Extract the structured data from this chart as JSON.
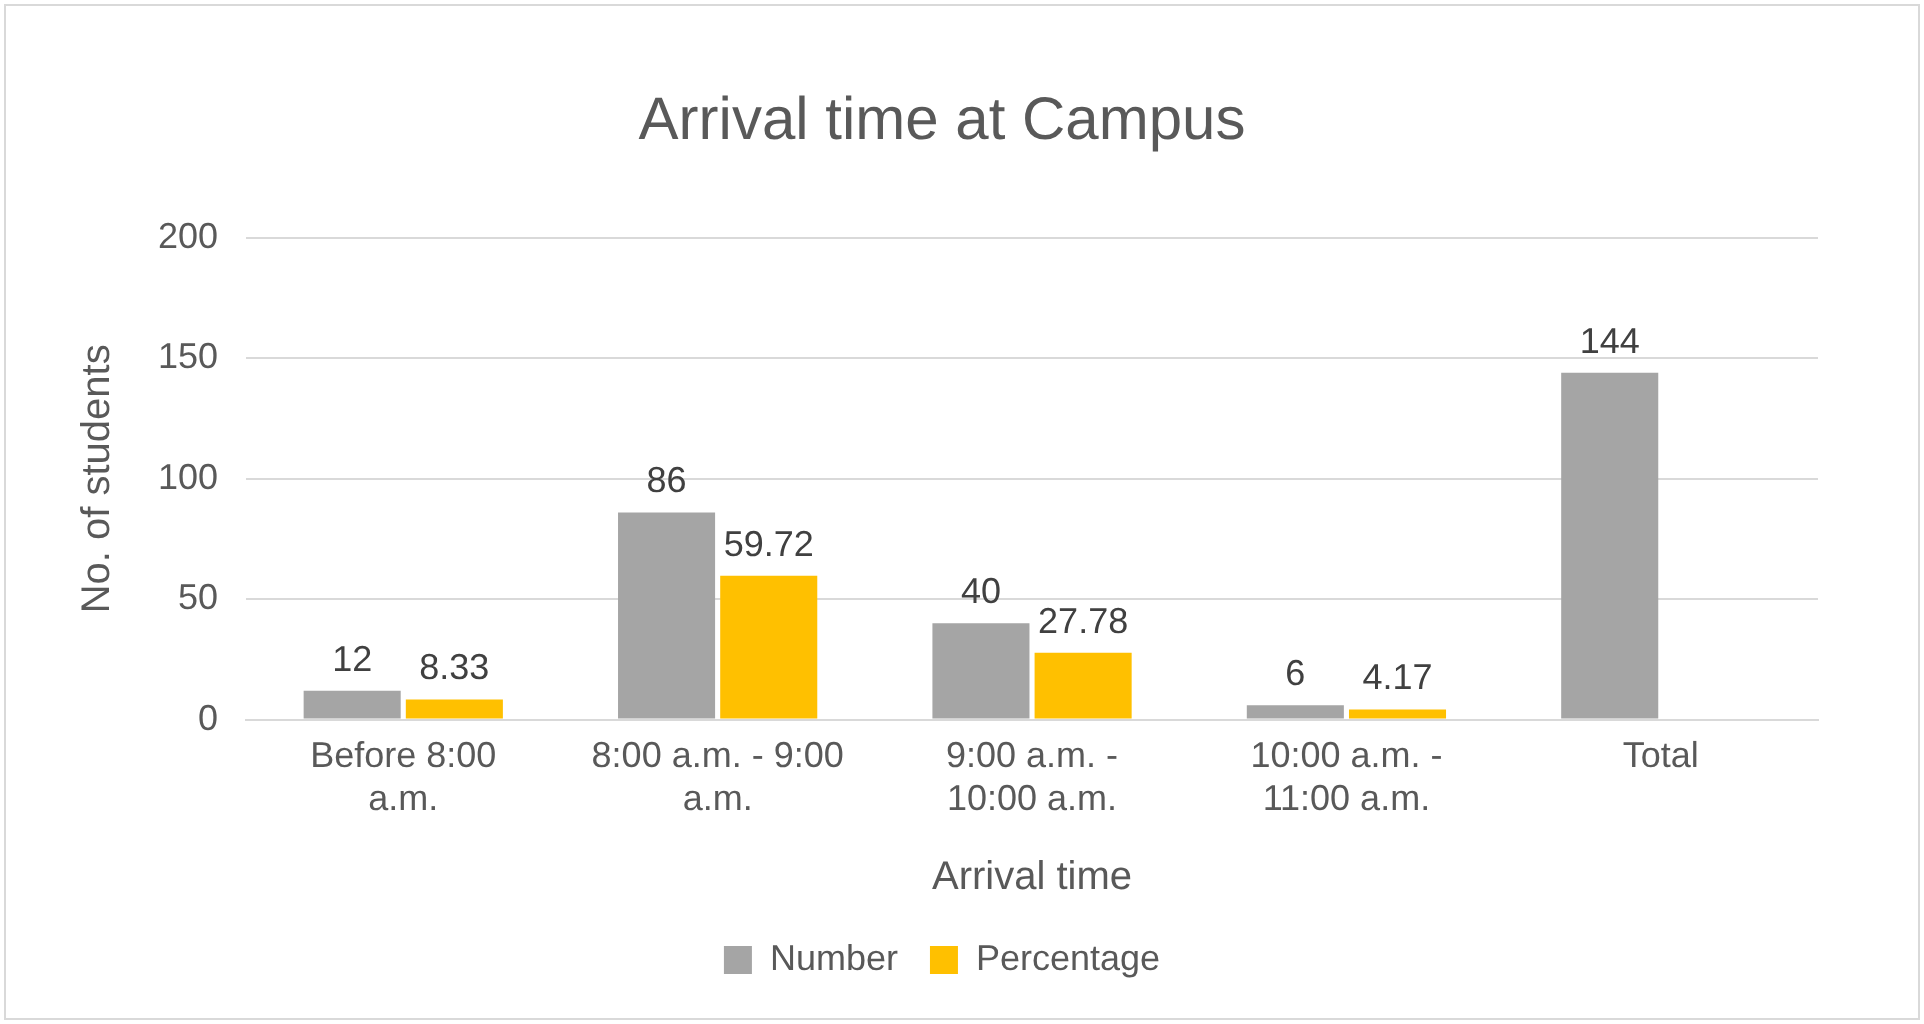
{
  "chart_data": {
    "type": "bar",
    "title": "Arrival time at Campus",
    "xlabel": "Arrival time",
    "ylabel": "No. of students",
    "categories": [
      "Before 8:00 a.m.",
      "8:00 a.m. - 9:00 a.m.",
      "9:00 a.m. - 10:00 a.m.",
      "10:00 a.m. - 11:00 a.m.",
      "Total"
    ],
    "series": [
      {
        "name": "Number",
        "color": "#a5a5a5",
        "values": [
          12,
          86,
          40,
          6,
          144
        ]
      },
      {
        "name": "Percentage",
        "color": "#ffc000",
        "values": [
          8.33,
          59.72,
          27.78,
          4.17,
          null
        ]
      }
    ],
    "ylim": [
      0,
      200
    ],
    "yticks": [
      0,
      50,
      100,
      150,
      200
    ],
    "grid": "y",
    "legend": "bottom",
    "data_labels": true
  }
}
